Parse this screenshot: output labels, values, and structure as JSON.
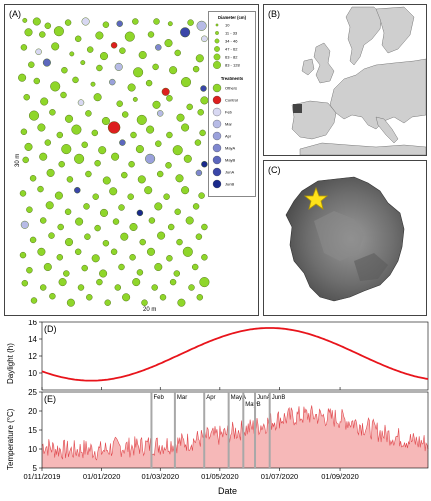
{
  "panels": {
    "a": {
      "label": "(A)",
      "y_axis_label": "30 m",
      "x_axis_label": "20 m"
    },
    "b": {
      "label": "(B)"
    },
    "c": {
      "label": "(C)"
    },
    "d": {
      "label": "(D)"
    },
    "e": {
      "label": "(E)"
    }
  },
  "legend": {
    "diameter_title": "Diameter (cm)",
    "diameter_classes": [
      "10",
      "11 - 33",
      "34 - 46",
      "47 - 62",
      "63 - 82",
      "83 - 128"
    ],
    "treatments_title": "Treatments",
    "treatments": [
      {
        "name": "Others",
        "color": "#8fd62a"
      },
      {
        "name": "Control",
        "color": "#dd1f1f"
      },
      {
        "name": "Feb",
        "color": "#d8d8f2"
      },
      {
        "name": "Mar",
        "color": "#b7bbe6"
      },
      {
        "name": "Apr",
        "color": "#9aa1db"
      },
      {
        "name": "MayA",
        "color": "#7f87cf"
      },
      {
        "name": "MayB",
        "color": "#5c67bd"
      },
      {
        "name": "JunA",
        "color": "#3a46a8"
      },
      {
        "name": "JunB",
        "color": "#1a2a8c"
      }
    ]
  },
  "chart_data": [
    {
      "type": "line",
      "panel": "D",
      "ylabel": "Daylight (h)",
      "ylim": [
        8,
        16
      ],
      "yticks": [
        10,
        12,
        14,
        16
      ],
      "series": [
        {
          "values_x": [
            "01/11/2019",
            "01/12/2019",
            "21/12/2019",
            "01/02/2020",
            "01/04/2020",
            "01/05/2020",
            "21/06/2020",
            "01/08/2020",
            "01/10/2020",
            "30/11/2020"
          ],
          "values_y": [
            10.1,
            9.3,
            9.1,
            10.0,
            12.5,
            13.9,
            15.3,
            14.6,
            11.9,
            10.2
          ]
        }
      ]
    },
    {
      "type": "area",
      "panel": "E",
      "xlabel": "Date",
      "ylabel": "Temperature (°C)",
      "ylim": [
        5,
        25
      ],
      "yticks": [
        5,
        10,
        15,
        20,
        25
      ],
      "xticks": [
        "01/11/2019",
        "01/01/2020",
        "01/03/2020",
        "01/05/2020",
        "01/07/2020",
        "01/09/2020"
      ],
      "x_range": [
        "01/11/2019",
        "30/11/2020"
      ],
      "series": [
        {
          "values_x": [
            "01/11/2019",
            "15/11/2019",
            "01/12/2019",
            "15/12/2019",
            "01/01/2020",
            "15/01/2020",
            "01/02/2020",
            "15/02/2020",
            "01/03/2020",
            "15/03/2020",
            "01/04/2020",
            "15/04/2020",
            "01/05/2020",
            "15/05/2020",
            "01/06/2020",
            "15/06/2020",
            "01/07/2020",
            "15/07/2020",
            "01/08/2020",
            "15/08/2020",
            "01/09/2020",
            "15/09/2020",
            "01/10/2020",
            "15/10/2020",
            "01/11/2020",
            "15/11/2020",
            "30/11/2020"
          ],
          "values_y": [
            11,
            10,
            9.5,
            10,
            9.5,
            10.5,
            10.5,
            11,
            11,
            11.5,
            12,
            13,
            13.5,
            14.5,
            15.5,
            16.5,
            18,
            18.5,
            19,
            18.5,
            18,
            17,
            15.5,
            14,
            13,
            12,
            11.5
          ]
        }
      ],
      "events": [
        {
          "label": "Feb",
          "date": "21/02/2020"
        },
        {
          "label": "Mar",
          "date": "16/03/2020"
        },
        {
          "label": "Apr",
          "date": "15/04/2020"
        },
        {
          "label": "MayA",
          "date": "10/05/2020"
        },
        {
          "label": "MayB",
          "date": "25/05/2020"
        },
        {
          "label": "JunA",
          "date": "06/06/2020"
        },
        {
          "label": "JunB",
          "date": "21/06/2020"
        }
      ]
    }
  ],
  "trees": [
    [
      15,
      5,
      1,
      0
    ],
    [
      28,
      6,
      3,
      0
    ],
    [
      40,
      10,
      2,
      0
    ],
    [
      62,
      7,
      2,
      0
    ],
    [
      81,
      6,
      3,
      2
    ],
    [
      103,
      9,
      2,
      0
    ],
    [
      118,
      8,
      2,
      6
    ],
    [
      135,
      6,
      2,
      0
    ],
    [
      158,
      6,
      2,
      0
    ],
    [
      173,
      8,
      1,
      0
    ],
    [
      195,
      7,
      2,
      0
    ],
    [
      207,
      10,
      4,
      3
    ],
    [
      19,
      16,
      3,
      0
    ],
    [
      34,
      18,
      2,
      0
    ],
    [
      52,
      15,
      4,
      0
    ],
    [
      73,
      22,
      2,
      0
    ],
    [
      96,
      19,
      3,
      0
    ],
    [
      112,
      28,
      2,
      1
    ],
    [
      129,
      20,
      4,
      0
    ],
    [
      152,
      18,
      2,
      0
    ],
    [
      171,
      26,
      3,
      0
    ],
    [
      189,
      16,
      4,
      7
    ],
    [
      210,
      22,
      2,
      2
    ],
    [
      14,
      30,
      2,
      0
    ],
    [
      30,
      34,
      2,
      2
    ],
    [
      48,
      29,
      3,
      0
    ],
    [
      66,
      36,
      1,
      0
    ],
    [
      86,
      32,
      2,
      0
    ],
    [
      101,
      38,
      3,
      0
    ],
    [
      121,
      33,
      2,
      0
    ],
    [
      143,
      37,
      3,
      0
    ],
    [
      160,
      30,
      2,
      5
    ],
    [
      181,
      35,
      2,
      0
    ],
    [
      205,
      40,
      3,
      0
    ],
    [
      22,
      46,
      2,
      0
    ],
    [
      39,
      44,
      3,
      6
    ],
    [
      58,
      51,
      2,
      0
    ],
    [
      78,
      44,
      1,
      0
    ],
    [
      96,
      49,
      2,
      0
    ],
    [
      117,
      48,
      3,
      3
    ],
    [
      138,
      53,
      4,
      0
    ],
    [
      157,
      48,
      2,
      0
    ],
    [
      176,
      51,
      3,
      0
    ],
    [
      201,
      50,
      2,
      0
    ],
    [
      12,
      58,
      3,
      0
    ],
    [
      28,
      61,
      2,
      0
    ],
    [
      48,
      66,
      4,
      0
    ],
    [
      70,
      60,
      2,
      0
    ],
    [
      89,
      64,
      1,
      0
    ],
    [
      110,
      62,
      2,
      4
    ],
    [
      131,
      67,
      3,
      0
    ],
    [
      150,
      63,
      2,
      0
    ],
    [
      168,
      71,
      3,
      1
    ],
    [
      190,
      62,
      4,
      0
    ],
    [
      209,
      68,
      2,
      7
    ],
    [
      17,
      76,
      2,
      0
    ],
    [
      36,
      80,
      3,
      0
    ],
    [
      57,
      74,
      2,
      0
    ],
    [
      76,
      81,
      2,
      2
    ],
    [
      94,
      76,
      3,
      0
    ],
    [
      118,
      82,
      2,
      0
    ],
    [
      135,
      78,
      1,
      0
    ],
    [
      158,
      83,
      3,
      0
    ],
    [
      172,
      77,
      2,
      0
    ],
    [
      194,
      85,
      2,
      0
    ],
    [
      210,
      79,
      3,
      0
    ],
    [
      25,
      93,
      4,
      0
    ],
    [
      45,
      90,
      2,
      0
    ],
    [
      63,
      96,
      3,
      0
    ],
    [
      84,
      91,
      2,
      0
    ],
    [
      103,
      98,
      3,
      0
    ],
    [
      124,
      92,
      2,
      0
    ],
    [
      142,
      97,
      4,
      0
    ],
    [
      162,
      91,
      2,
      3
    ],
    [
      184,
      95,
      3,
      0
    ],
    [
      206,
      90,
      2,
      0
    ],
    [
      14,
      108,
      2,
      0
    ],
    [
      33,
      104,
      3,
      0
    ],
    [
      53,
      111,
      2,
      0
    ],
    [
      71,
      106,
      4,
      0
    ],
    [
      91,
      109,
      2,
      0
    ],
    [
      112,
      104,
      5,
      1
    ],
    [
      133,
      111,
      2,
      0
    ],
    [
      151,
      106,
      3,
      0
    ],
    [
      172,
      111,
      2,
      0
    ],
    [
      189,
      104,
      3,
      0
    ],
    [
      208,
      109,
      2,
      0
    ],
    [
      19,
      122,
      3,
      0
    ],
    [
      40,
      118,
      2,
      0
    ],
    [
      60,
      124,
      4,
      0
    ],
    [
      80,
      120,
      2,
      0
    ],
    [
      99,
      125,
      3,
      0
    ],
    [
      121,
      118,
      2,
      6
    ],
    [
      140,
      124,
      3,
      0
    ],
    [
      160,
      119,
      2,
      0
    ],
    [
      181,
      125,
      4,
      0
    ],
    [
      203,
      118,
      2,
      0
    ],
    [
      16,
      134,
      2,
      0
    ],
    [
      35,
      131,
      3,
      0
    ],
    [
      55,
      138,
      2,
      0
    ],
    [
      74,
      133,
      4,
      0
    ],
    [
      94,
      137,
      2,
      0
    ],
    [
      113,
      131,
      3,
      0
    ],
    [
      131,
      138,
      2,
      0
    ],
    [
      151,
      133,
      4,
      4
    ],
    [
      171,
      139,
      2,
      0
    ],
    [
      192,
      133,
      3,
      0
    ],
    [
      210,
      138,
      2,
      8
    ],
    [
      24,
      151,
      2,
      0
    ],
    [
      43,
      146,
      3,
      0
    ],
    [
      64,
      152,
      2,
      0
    ],
    [
      84,
      147,
      2,
      0
    ],
    [
      104,
      153,
      3,
      0
    ],
    [
      123,
      148,
      2,
      0
    ],
    [
      142,
      152,
      3,
      0
    ],
    [
      162,
      147,
      2,
      0
    ],
    [
      183,
      151,
      3,
      0
    ],
    [
      204,
      146,
      2,
      5
    ],
    [
      13,
      165,
      2,
      0
    ],
    [
      32,
      161,
      2,
      0
    ],
    [
      52,
      167,
      3,
      0
    ],
    [
      72,
      162,
      2,
      7
    ],
    [
      92,
      168,
      2,
      0
    ],
    [
      111,
      163,
      3,
      0
    ],
    [
      130,
      168,
      2,
      0
    ],
    [
      149,
      162,
      3,
      0
    ],
    [
      169,
      168,
      2,
      0
    ],
    [
      189,
      162,
      3,
      0
    ],
    [
      207,
      167,
      2,
      0
    ],
    [
      20,
      180,
      2,
      0
    ],
    [
      42,
      176,
      3,
      0
    ],
    [
      62,
      182,
      2,
      0
    ],
    [
      82,
      177,
      2,
      0
    ],
    [
      101,
      183,
      3,
      0
    ],
    [
      120,
      178,
      2,
      0
    ],
    [
      140,
      183,
      2,
      8
    ],
    [
      160,
      177,
      3,
      0
    ],
    [
      181,
      182,
      2,
      0
    ],
    [
      201,
      177,
      2,
      0
    ],
    [
      15,
      194,
      3,
      3
    ],
    [
      35,
      190,
      2,
      0
    ],
    [
      54,
      196,
      2,
      0
    ],
    [
      74,
      191,
      3,
      0
    ],
    [
      94,
      197,
      2,
      0
    ],
    [
      114,
      191,
      2,
      0
    ],
    [
      133,
      196,
      3,
      0
    ],
    [
      153,
      190,
      2,
      0
    ],
    [
      174,
      196,
      2,
      0
    ],
    [
      194,
      190,
      3,
      0
    ],
    [
      210,
      196,
      2,
      0
    ],
    [
      24,
      208,
      2,
      0
    ],
    [
      44,
      204,
      2,
      0
    ],
    [
      63,
      210,
      3,
      0
    ],
    [
      83,
      205,
      2,
      0
    ],
    [
      103,
      211,
      2,
      0
    ],
    [
      123,
      205,
      3,
      0
    ],
    [
      143,
      210,
      2,
      0
    ],
    [
      163,
      204,
      3,
      0
    ],
    [
      183,
      210,
      2,
      0
    ],
    [
      204,
      205,
      2,
      0
    ],
    [
      13,
      222,
      2,
      0
    ],
    [
      33,
      219,
      3,
      0
    ],
    [
      53,
      224,
      2,
      0
    ],
    [
      73,
      219,
      2,
      0
    ],
    [
      92,
      225,
      3,
      0
    ],
    [
      112,
      219,
      2,
      0
    ],
    [
      132,
      224,
      2,
      0
    ],
    [
      152,
      219,
      3,
      0
    ],
    [
      172,
      225,
      2,
      0
    ],
    [
      192,
      219,
      4,
      0
    ],
    [
      210,
      224,
      2,
      0
    ],
    [
      20,
      236,
      2,
      0
    ],
    [
      40,
      233,
      3,
      0
    ],
    [
      60,
      239,
      2,
      0
    ],
    [
      80,
      234,
      2,
      0
    ],
    [
      100,
      239,
      3,
      0
    ],
    [
      120,
      233,
      2,
      0
    ],
    [
      140,
      238,
      2,
      0
    ],
    [
      160,
      233,
      3,
      0
    ],
    [
      180,
      239,
      2,
      0
    ],
    [
      200,
      233,
      2,
      0
    ],
    [
      15,
      248,
      2,
      0
    ],
    [
      35,
      252,
      2,
      0
    ],
    [
      56,
      247,
      3,
      0
    ],
    [
      76,
      252,
      2,
      0
    ],
    [
      96,
      247,
      2,
      0
    ],
    [
      116,
      252,
      2,
      0
    ],
    [
      136,
      247,
      3,
      0
    ],
    [
      156,
      252,
      2,
      0
    ],
    [
      176,
      247,
      2,
      0
    ],
    [
      196,
      252,
      2,
      0
    ],
    [
      210,
      247,
      4,
      0
    ],
    [
      25,
      264,
      2,
      0
    ],
    [
      45,
      260,
      2,
      0
    ],
    [
      65,
      266,
      3,
      0
    ],
    [
      85,
      261,
      2,
      0
    ],
    [
      105,
      266,
      2,
      0
    ],
    [
      125,
      261,
      3,
      0
    ],
    [
      145,
      266,
      2,
      0
    ],
    [
      165,
      261,
      2,
      0
    ],
    [
      185,
      266,
      3,
      0
    ],
    [
      205,
      261,
      2,
      0
    ]
  ]
}
